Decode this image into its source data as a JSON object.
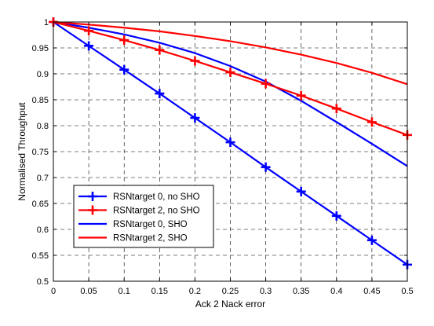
{
  "chart_data": {
    "type": "line",
    "title": "",
    "xlabel": "Ack 2 Nack error",
    "ylabel": "Normalised Throughput",
    "xlim": [
      0,
      0.5
    ],
    "ylim": [
      0.5,
      1
    ],
    "grid": true,
    "legend_position": "bottom-left",
    "x_ticks": [
      "0",
      "0.05",
      "0.1",
      "0.15",
      "0.2",
      "0.25",
      "0.3",
      "0.35",
      "0.4",
      "0.45",
      "0.5"
    ],
    "y_ticks": [
      "0.5",
      "0.55",
      "0.6",
      "0.65",
      "0.7",
      "0.75",
      "0.8",
      "0.85",
      "0.9",
      "0.95",
      "1"
    ],
    "x": [
      0,
      0.05,
      0.1,
      0.15,
      0.2,
      0.25,
      0.3,
      0.35,
      0.4,
      0.45,
      0.5
    ],
    "series": [
      {
        "name": "RSNtarget 0, no SHO",
        "color": "#0000ff",
        "marker": "plus",
        "values": [
          1.0,
          0.954,
          0.908,
          0.862,
          0.815,
          0.768,
          0.72,
          0.673,
          0.626,
          0.579,
          0.532
        ]
      },
      {
        "name": "RSNtarget 2, no SHO",
        "color": "#ff0000",
        "marker": "plus",
        "values": [
          1.0,
          0.983,
          0.965,
          0.946,
          0.925,
          0.903,
          0.881,
          0.858,
          0.833,
          0.807,
          0.782
        ]
      },
      {
        "name": "RSNtarget 0, SHO",
        "color": "#0000ff",
        "marker": "none",
        "values": [
          1.0,
          0.989,
          0.976,
          0.96,
          0.94,
          0.915,
          0.885,
          0.848,
          0.807,
          0.765,
          0.722
        ]
      },
      {
        "name": "RSNtarget 2, SHO",
        "color": "#ff0000",
        "marker": "none",
        "values": [
          1.0,
          0.995,
          0.989,
          0.982,
          0.973,
          0.963,
          0.951,
          0.937,
          0.921,
          0.902,
          0.88
        ]
      }
    ]
  }
}
